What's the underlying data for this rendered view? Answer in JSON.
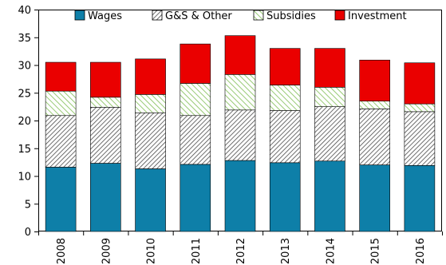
{
  "chart_data": {
    "type": "bar",
    "stacked": true,
    "categories": [
      "2008",
      "2009",
      "2010",
      "2011",
      "2012",
      "2013",
      "2014",
      "2015",
      "2016"
    ],
    "series": [
      {
        "name": "Wages",
        "color": "#0e7fa8",
        "pattern": "solid",
        "values": [
          11.6,
          12.3,
          11.3,
          12.1,
          12.8,
          12.4,
          12.7,
          12.0,
          11.9
        ]
      },
      {
        "name": "G&S & Other",
        "color": "#555555",
        "pattern": "hatch-dark",
        "values": [
          9.3,
          10.1,
          10.1,
          8.8,
          9.1,
          9.4,
          9.8,
          10.1,
          9.7
        ]
      },
      {
        "name": "Subsidies",
        "color": "#8dc466",
        "pattern": "hatch-green",
        "values": [
          4.4,
          1.8,
          3.3,
          5.8,
          6.4,
          4.6,
          3.5,
          1.4,
          1.4
        ]
      },
      {
        "name": "Investment",
        "color": "#ea0000",
        "pattern": "solid",
        "values": [
          5.2,
          6.3,
          6.4,
          7.1,
          7.0,
          6.6,
          7.0,
          7.4,
          7.4
        ]
      }
    ],
    "ylim": [
      0,
      40
    ],
    "yticks": [
      "0",
      "5",
      "10",
      "15",
      "20",
      "25",
      "30",
      "35",
      "40"
    ],
    "grid": false,
    "legend_position": "top",
    "title": "",
    "xlabel": "",
    "ylabel": ""
  }
}
